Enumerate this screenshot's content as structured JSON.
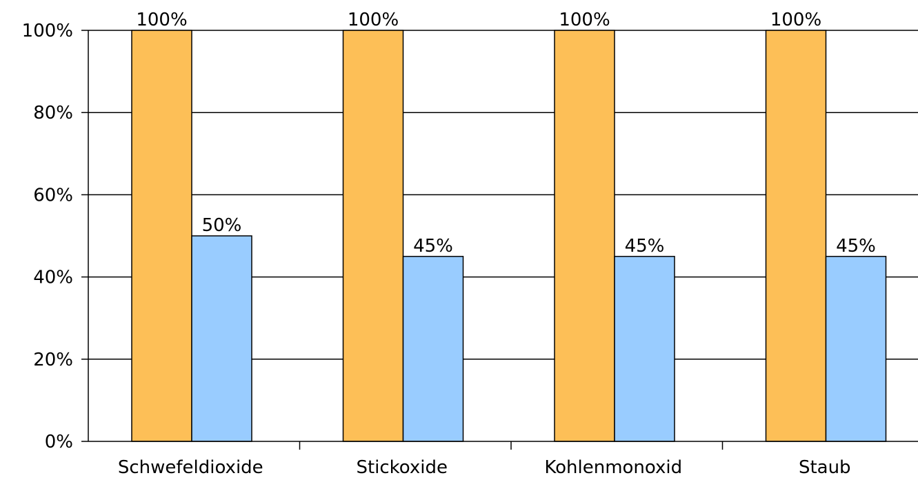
{
  "chart_data": {
    "type": "bar",
    "categories": [
      "Schwefeldioxide",
      "Stickoxide",
      "Kohlenmonoxid",
      "Staub"
    ],
    "series": [
      {
        "values": [
          100,
          100,
          100,
          100
        ],
        "color": "#FDBF57"
      },
      {
        "values": [
          50,
          45,
          45,
          45
        ],
        "color": "#99CCFF"
      }
    ],
    "data_labels": [
      [
        "100%",
        "100%",
        "100%",
        "100%"
      ],
      [
        "50%",
        "45%",
        "45%",
        "45%"
      ]
    ],
    "yticks": [
      0,
      20,
      40,
      60,
      80,
      100
    ],
    "ytick_labels": [
      "0%",
      "20%",
      "40%",
      "60%",
      "80%",
      "100%"
    ],
    "ylim": [
      0,
      100
    ],
    "title": "",
    "xlabel": "",
    "ylabel": "",
    "grid": true,
    "legend": "none"
  }
}
